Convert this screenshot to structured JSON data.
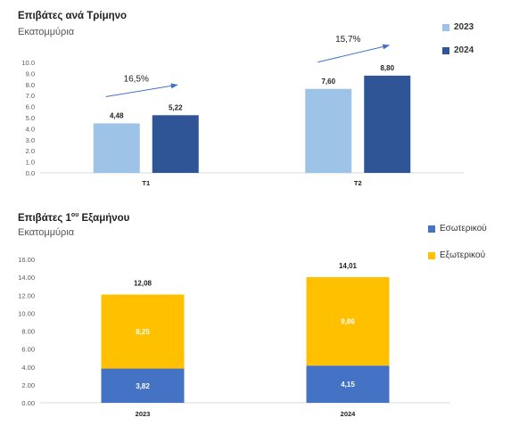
{
  "chart1": {
    "title": "Επιβάτες ανά Τρίμηνο",
    "subtitle": "Εκατομμύρια",
    "legend": [
      {
        "label": "2023",
        "color": "#9DC3E6"
      },
      {
        "label": "2024",
        "color": "#2F5597"
      }
    ],
    "growth_labels": [
      "16,5%",
      "15,7%"
    ],
    "arrow_color": "#4472C4"
  },
  "chart2": {
    "title": "Επιβάτες 1",
    "title_sup": "ου",
    "title_rest": " Εξαμήνου",
    "subtitle": "Εκατομμύρια",
    "legend": [
      {
        "label": "Εσωτερικού",
        "color": "#4472C4"
      },
      {
        "label": "Εξωτερικού",
        "color": "#FFC000"
      }
    ]
  },
  "chart_data": [
    {
      "type": "bar",
      "title": "Επιβάτες ανά Τρίμηνο",
      "subtitle": "Εκατομμύρια",
      "categories": [
        "T1",
        "T2"
      ],
      "series": [
        {
          "name": "2023",
          "values": [
            4.48,
            7.6
          ],
          "labels": [
            "4,48",
            "7,60"
          ],
          "color": "#9DC3E6"
        },
        {
          "name": "2024",
          "values": [
            5.22,
            8.8
          ],
          "labels": [
            "5,22",
            "8,80"
          ],
          "color": "#2F5597"
        }
      ],
      "ylim": [
        0,
        10
      ],
      "yticks": [
        "0.0",
        "1.0",
        "2.0",
        "3.0",
        "4.0",
        "5.0",
        "6.0",
        "7.0",
        "8.0",
        "9.0",
        "10.0"
      ],
      "annotations": [
        "16,5%",
        "15,7%"
      ],
      "grid": false,
      "legend_position": "top-right"
    },
    {
      "type": "bar",
      "stacked": true,
      "title": "Επιβάτες 1ου Εξαμήνου",
      "subtitle": "Εκατομμύρια",
      "categories": [
        "2023",
        "2024"
      ],
      "series": [
        {
          "name": "Εσωτερικού",
          "values": [
            3.82,
            4.15
          ],
          "labels": [
            "3,82",
            "4,15"
          ],
          "color": "#4472C4"
        },
        {
          "name": "Εξωτερικού",
          "values": [
            8.25,
            9.86
          ],
          "labels": [
            "8,25",
            "9,86"
          ],
          "color": "#FFC000"
        }
      ],
      "totals": [
        12.08,
        14.01
      ],
      "total_labels": [
        "12,08",
        "14,01"
      ],
      "ylim": [
        0,
        16
      ],
      "yticks": [
        "0.00",
        "2.00",
        "4.00",
        "6.00",
        "8.00",
        "10.00",
        "12.00",
        "14.00",
        "16.00"
      ],
      "grid": false,
      "legend_position": "right"
    }
  ]
}
